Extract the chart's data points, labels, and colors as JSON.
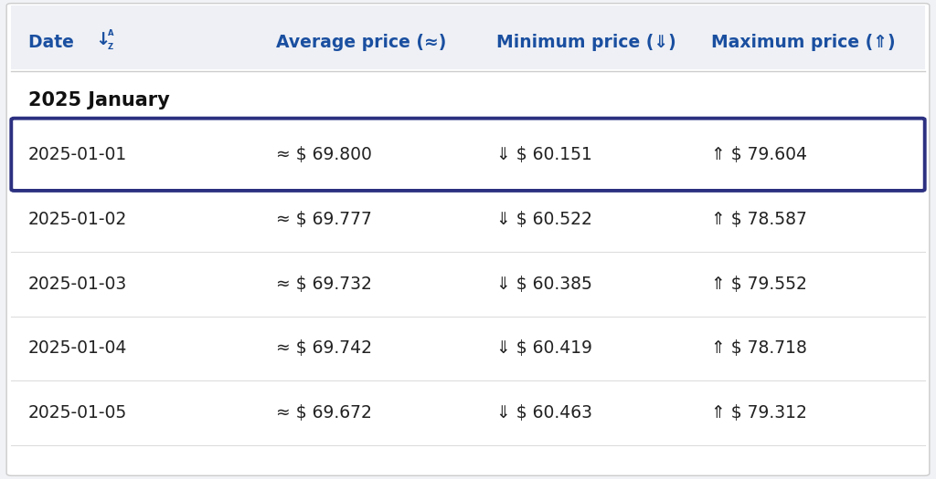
{
  "bg_color": "#f0f2f5",
  "table_bg": "#ffffff",
  "header_bg": "#eef0f5",
  "highlight_border": "#2c3080",
  "section_label": "2025 January",
  "col_header_color": "#1a4fa0",
  "rows": [
    {
      "date": "2025-01-01",
      "avg": "≈ $ 69.800",
      "min": "⇓ $ 60.151",
      "max": "⇑ $ 79.604",
      "highlight": true
    },
    {
      "date": "2025-01-02",
      "avg": "≈ $ 69.777",
      "min": "⇓ $ 60.522",
      "max": "⇑ $ 78.587",
      "highlight": false
    },
    {
      "date": "2025-01-03",
      "avg": "≈ $ 69.732",
      "min": "⇓ $ 60.385",
      "max": "⇑ $ 79.552",
      "highlight": false
    },
    {
      "date": "2025-01-04",
      "avg": "≈ $ 69.742",
      "min": "⇓ $ 60.419",
      "max": "⇑ $ 78.718",
      "highlight": false
    },
    {
      "date": "2025-01-05",
      "avg": "≈ $ 69.672",
      "min": "⇓ $ 60.463",
      "max": "⇑ $ 79.312",
      "highlight": false
    }
  ],
  "fig_width": 10.24,
  "fig_height": 5.25,
  "dpi": 100
}
